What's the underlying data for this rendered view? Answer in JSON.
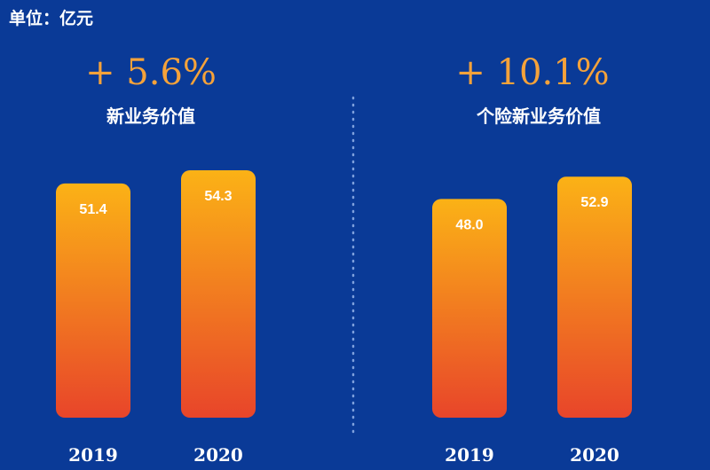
{
  "unit_label": "单位：亿元",
  "colors": {
    "background": "#0a3a97",
    "growth_text": "#f5a23a",
    "bar_top": "#fbb216",
    "bar_bottom": "#e8452a",
    "divider": "#7fa0dd"
  },
  "chart_data": [
    {
      "type": "bar",
      "growth": "+ 5.6%",
      "title": "新业务价值",
      "categories": [
        "2019",
        "2020"
      ],
      "values": [
        51.4,
        54.3
      ],
      "value_labels": [
        "51.4",
        "54.3"
      ],
      "ylim": [
        0,
        58
      ]
    },
    {
      "type": "bar",
      "growth": "+ 10.1%",
      "title": "个险新业务价值",
      "categories": [
        "2019",
        "2020"
      ],
      "values": [
        48.0,
        52.9
      ],
      "value_labels": [
        "48.0",
        "52.9"
      ],
      "ylim": [
        0,
        58
      ]
    }
  ]
}
